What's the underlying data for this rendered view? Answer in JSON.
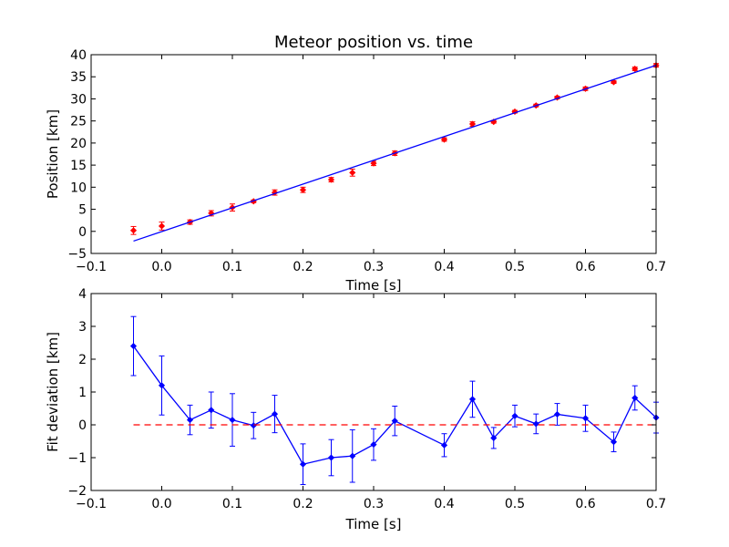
{
  "chart_data": [
    {
      "type": "scatter",
      "title": "Meteor position vs. time",
      "xlabel": "Time [s]",
      "ylabel": "Position [km]",
      "xlim": [
        -0.1,
        0.7
      ],
      "ylim": [
        -5,
        40
      ],
      "xticks": [
        "−0.1",
        "0.0",
        "0.1",
        "0.2",
        "0.3",
        "0.4",
        "0.5",
        "0.6",
        "0.7"
      ],
      "yticks": [
        "−5",
        "0",
        "5",
        "10",
        "15",
        "20",
        "25",
        "30",
        "35",
        "40"
      ],
      "series": [
        {
          "kind": "points-with-errorbars",
          "color": "#ff0000",
          "points": [
            {
              "x": -0.04,
              "y": 0.2,
              "err": 0.9
            },
            {
              "x": 0.0,
              "y": 1.2,
              "err": 0.9
            },
            {
              "x": 0.04,
              "y": 2.1,
              "err": 0.5
            },
            {
              "x": 0.07,
              "y": 4.1,
              "err": 0.6
            },
            {
              "x": 0.1,
              "y": 5.4,
              "err": 0.8
            },
            {
              "x": 0.13,
              "y": 6.8,
              "err": 0.3
            },
            {
              "x": 0.16,
              "y": 8.8,
              "err": 0.6
            },
            {
              "x": 0.2,
              "y": 9.4,
              "err": 0.6
            },
            {
              "x": 0.24,
              "y": 11.7,
              "err": 0.5
            },
            {
              "x": 0.27,
              "y": 13.3,
              "err": 0.8
            },
            {
              "x": 0.3,
              "y": 15.4,
              "err": 0.5
            },
            {
              "x": 0.33,
              "y": 17.7,
              "err": 0.5
            },
            {
              "x": 0.4,
              "y": 20.8,
              "err": 0.4
            },
            {
              "x": 0.44,
              "y": 24.3,
              "err": 0.5
            },
            {
              "x": 0.47,
              "y": 24.8,
              "err": 0.3
            },
            {
              "x": 0.5,
              "y": 27.1,
              "err": 0.3
            },
            {
              "x": 0.53,
              "y": 28.5,
              "err": 0.3
            },
            {
              "x": 0.56,
              "y": 30.3,
              "err": 0.3
            },
            {
              "x": 0.6,
              "y": 32.3,
              "err": 0.4
            },
            {
              "x": 0.64,
              "y": 33.8,
              "err": 0.3
            },
            {
              "x": 0.67,
              "y": 36.8,
              "err": 0.4
            },
            {
              "x": 0.7,
              "y": 37.6,
              "err": 0.4
            }
          ]
        },
        {
          "kind": "line",
          "color": "#0000ff",
          "points": [
            {
              "x": -0.04,
              "y": -2.2
            },
            {
              "x": 0.7,
              "y": 37.6
            }
          ]
        }
      ],
      "grid": false
    },
    {
      "type": "line",
      "xlabel": "Time [s]",
      "ylabel": "Fit deviation [km]",
      "xlim": [
        -0.1,
        0.7
      ],
      "ylim": [
        -2,
        4
      ],
      "xticks": [
        "−0.1",
        "0.0",
        "0.1",
        "0.2",
        "0.3",
        "0.4",
        "0.5",
        "0.6",
        "0.7"
      ],
      "yticks": [
        "−2",
        "−1",
        "0",
        "1",
        "2",
        "3",
        "4"
      ],
      "series": [
        {
          "kind": "line-with-errorbars",
          "color": "#0000ff",
          "points": [
            {
              "x": -0.04,
              "y": 2.4,
              "err": 0.9
            },
            {
              "x": 0.0,
              "y": 1.2,
              "err": 0.9
            },
            {
              "x": 0.04,
              "y": 0.15,
              "err": 0.45
            },
            {
              "x": 0.07,
              "y": 0.45,
              "err": 0.55
            },
            {
              "x": 0.1,
              "y": 0.15,
              "err": 0.8
            },
            {
              "x": 0.13,
              "y": -0.02,
              "err": 0.4
            },
            {
              "x": 0.16,
              "y": 0.33,
              "err": 0.57
            },
            {
              "x": 0.2,
              "y": -1.2,
              "err": 0.62
            },
            {
              "x": 0.24,
              "y": -1.0,
              "err": 0.55
            },
            {
              "x": 0.27,
              "y": -0.95,
              "err": 0.8
            },
            {
              "x": 0.3,
              "y": -0.6,
              "err": 0.48
            },
            {
              "x": 0.33,
              "y": 0.12,
              "err": 0.45
            },
            {
              "x": 0.4,
              "y": -0.62,
              "err": 0.35
            },
            {
              "x": 0.44,
              "y": 0.78,
              "err": 0.55
            },
            {
              "x": 0.47,
              "y": -0.4,
              "err": 0.32
            },
            {
              "x": 0.5,
              "y": 0.27,
              "err": 0.33
            },
            {
              "x": 0.53,
              "y": 0.03,
              "err": 0.3
            },
            {
              "x": 0.56,
              "y": 0.32,
              "err": 0.33
            },
            {
              "x": 0.6,
              "y": 0.2,
              "err": 0.4
            },
            {
              "x": 0.64,
              "y": -0.52,
              "err": 0.3
            },
            {
              "x": 0.67,
              "y": 0.82,
              "err": 0.37
            },
            {
              "x": 0.7,
              "y": 0.22,
              "err": 0.47
            }
          ]
        },
        {
          "kind": "dashed-line",
          "color": "#ff0000",
          "points": [
            {
              "x": -0.04,
              "y": 0
            },
            {
              "x": 0.7,
              "y": 0
            }
          ]
        }
      ],
      "grid": false
    }
  ]
}
